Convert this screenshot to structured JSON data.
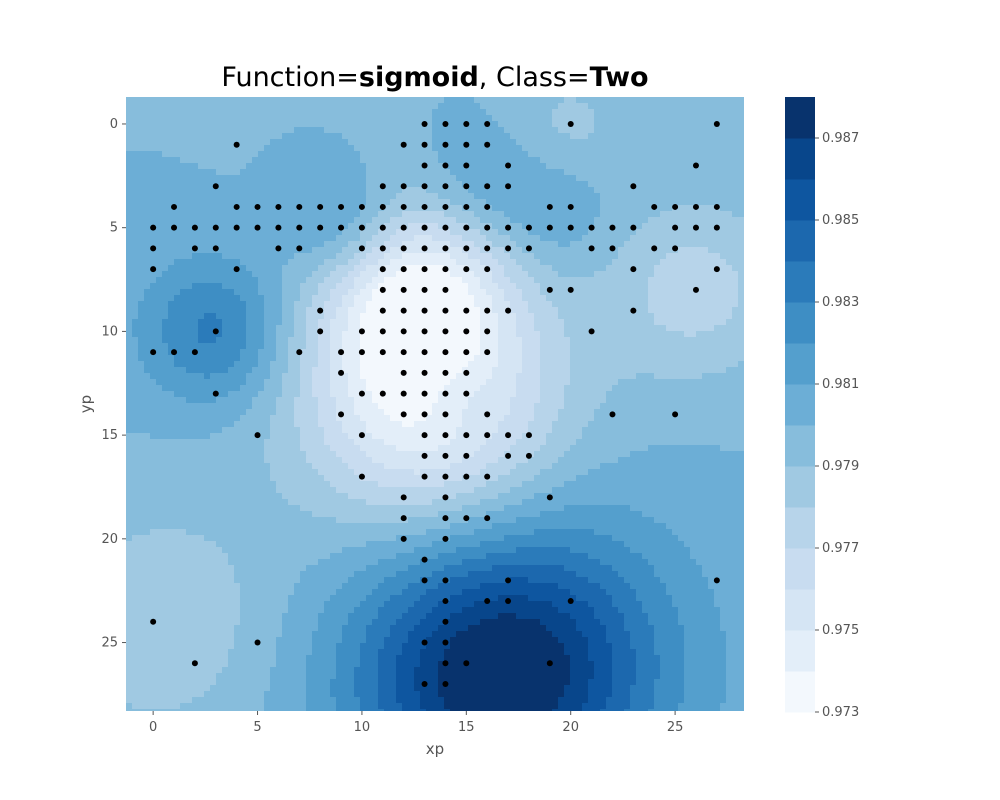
{
  "title": {
    "prefix": "Function=",
    "function": "sigmoid",
    "separator": ", Class=",
    "class": "Two"
  },
  "chart_data": {
    "type": "contourf",
    "xlabel": "xp",
    "ylabel": "yp",
    "xlim": [
      -1.3,
      28.3
    ],
    "ylim": [
      28.3,
      -1.3
    ],
    "y_inverted": true,
    "grid": false,
    "xticks": [
      0,
      5,
      10,
      15,
      20,
      25
    ],
    "yticks": [
      0,
      5,
      10,
      15,
      20,
      25
    ],
    "colormap": "Blues",
    "colorbar": {
      "range": [
        0.973,
        0.988
      ],
      "levels": [
        0.973,
        0.974,
        0.975,
        0.976,
        0.977,
        0.978,
        0.979,
        0.98,
        0.981,
        0.982,
        0.983,
        0.984,
        0.985,
        0.986,
        0.987,
        0.988
      ],
      "tick_values": [
        0.973,
        0.975,
        0.977,
        0.979,
        0.981,
        0.983,
        0.985,
        0.987
      ],
      "tick_labels": [
        "0.973",
        "0.975",
        "0.977",
        "0.979",
        "0.981",
        "0.983",
        "0.985",
        "0.987"
      ],
      "colors": [
        "#f3f8fd",
        "#e3eef9",
        "#d5e5f4",
        "#c8dcf0",
        "#b7d4ea",
        "#a0c9e2",
        "#87bddc",
        "#6caed6",
        "#549fcd",
        "#3e8ec4",
        "#2b7bba",
        "#1c68ae",
        "#0e56a0",
        "#08468b",
        "#08336d"
      ]
    },
    "field_features": [
      {
        "x": 13,
        "y": 12,
        "value": 0.9755,
        "radius": 4.5
      },
      {
        "x": 12.5,
        "y": 8,
        "value": 0.9758,
        "radius": 3
      },
      {
        "x": 13.5,
        "y": 15,
        "value": 0.9775,
        "radius": 4
      },
      {
        "x": 18,
        "y": 26,
        "value": 0.9855,
        "radius": 5
      },
      {
        "x": 15,
        "y": 27,
        "value": 0.9835,
        "radius": 4.5
      },
      {
        "x": 3,
        "y": 10,
        "value": 0.9835,
        "radius": 2.5
      },
      {
        "x": 9,
        "y": 5,
        "value": 0.9825,
        "radius": 2
      },
      {
        "x": 15.5,
        "y": 3,
        "value": 0.9813,
        "radius": 2
      },
      {
        "x": 19,
        "y": 4.5,
        "value": 0.9813,
        "radius": 2
      },
      {
        "x": 14.5,
        "y": 13,
        "value": 0.9815,
        "radius": 1.5
      },
      {
        "x": 0.5,
        "y": 24,
        "value": 0.9782,
        "radius": 4
      },
      {
        "x": 26,
        "y": 8,
        "value": 0.9775,
        "radius": 3
      },
      {
        "x": 20,
        "y": 0,
        "value": 0.9788,
        "radius": 2
      }
    ],
    "points": [
      [
        0,
        5
      ],
      [
        0,
        6
      ],
      [
        0,
        7
      ],
      [
        1,
        4
      ],
      [
        1,
        5
      ],
      [
        2,
        5
      ],
      [
        2,
        6
      ],
      [
        3,
        3
      ],
      [
        3,
        5
      ],
      [
        3,
        6
      ],
      [
        4,
        1
      ],
      [
        4,
        4
      ],
      [
        4,
        5
      ],
      [
        4,
        7
      ],
      [
        5,
        4
      ],
      [
        5,
        5
      ],
      [
        6,
        4
      ],
      [
        6,
        5
      ],
      [
        6,
        6
      ],
      [
        7,
        4
      ],
      [
        7,
        5
      ],
      [
        7,
        6
      ],
      [
        8,
        4
      ],
      [
        8,
        5
      ],
      [
        9,
        4
      ],
      [
        9,
        5
      ],
      [
        10,
        4
      ],
      [
        10,
        5
      ],
      [
        10,
        6
      ],
      [
        11,
        3
      ],
      [
        11,
        4
      ],
      [
        11,
        5
      ],
      [
        11,
        6
      ],
      [
        11,
        7
      ],
      [
        11,
        8
      ],
      [
        11,
        9
      ],
      [
        11,
        10
      ],
      [
        11,
        11
      ],
      [
        12,
        1
      ],
      [
        12,
        3
      ],
      [
        12,
        4
      ],
      [
        12,
        5
      ],
      [
        12,
        6
      ],
      [
        12,
        7
      ],
      [
        12,
        8
      ],
      [
        12,
        9
      ],
      [
        12,
        10
      ],
      [
        12,
        11
      ],
      [
        12,
        12
      ],
      [
        13,
        0
      ],
      [
        13,
        1
      ],
      [
        13,
        2
      ],
      [
        13,
        3
      ],
      [
        13,
        4
      ],
      [
        13,
        5
      ],
      [
        13,
        6
      ],
      [
        13,
        7
      ],
      [
        13,
        8
      ],
      [
        13,
        9
      ],
      [
        13,
        10
      ],
      [
        13,
        11
      ],
      [
        13,
        12
      ],
      [
        13,
        13
      ],
      [
        13,
        14
      ],
      [
        13,
        15
      ],
      [
        13,
        16
      ],
      [
        13,
        17
      ],
      [
        14,
        0
      ],
      [
        14,
        1
      ],
      [
        14,
        2
      ],
      [
        14,
        3
      ],
      [
        14,
        4
      ],
      [
        14,
        5
      ],
      [
        14,
        6
      ],
      [
        14,
        7
      ],
      [
        14,
        8
      ],
      [
        14,
        9
      ],
      [
        14,
        10
      ],
      [
        14,
        11
      ],
      [
        14,
        12
      ],
      [
        14,
        13
      ],
      [
        14,
        14
      ],
      [
        14,
        15
      ],
      [
        14,
        16
      ],
      [
        14,
        17
      ],
      [
        14,
        18
      ],
      [
        14,
        19
      ],
      [
        14,
        20
      ],
      [
        15,
        0
      ],
      [
        15,
        1
      ],
      [
        15,
        2
      ],
      [
        15,
        3
      ],
      [
        15,
        4
      ],
      [
        15,
        5
      ],
      [
        15,
        6
      ],
      [
        15,
        7
      ],
      [
        15,
        9
      ],
      [
        15,
        10
      ],
      [
        15,
        11
      ],
      [
        15,
        12
      ],
      [
        15,
        13
      ],
      [
        15,
        15
      ],
      [
        15,
        16
      ],
      [
        15,
        17
      ],
      [
        15,
        19
      ],
      [
        16,
        0
      ],
      [
        16,
        1
      ],
      [
        16,
        3
      ],
      [
        16,
        4
      ],
      [
        16,
        5
      ],
      [
        16,
        6
      ],
      [
        16,
        7
      ],
      [
        16,
        9
      ],
      [
        16,
        10
      ],
      [
        16,
        11
      ],
      [
        16,
        14
      ],
      [
        16,
        15
      ],
      [
        16,
        17
      ],
      [
        16,
        19
      ],
      [
        17,
        2
      ],
      [
        17,
        3
      ],
      [
        17,
        5
      ],
      [
        17,
        6
      ],
      [
        17,
        9
      ],
      [
        17,
        15
      ],
      [
        17,
        16
      ],
      [
        18,
        5
      ],
      [
        18,
        6
      ],
      [
        18,
        15
      ],
      [
        18,
        16
      ],
      [
        19,
        4
      ],
      [
        19,
        5
      ],
      [
        19,
        8
      ],
      [
        19,
        18
      ],
      [
        20,
        0
      ],
      [
        20,
        4
      ],
      [
        20,
        5
      ],
      [
        20,
        8
      ],
      [
        20,
        23
      ],
      [
        21,
        5
      ],
      [
        21,
        6
      ],
      [
        21,
        10
      ],
      [
        22,
        5
      ],
      [
        22,
        6
      ],
      [
        22,
        14
      ],
      [
        23,
        3
      ],
      [
        23,
        5
      ],
      [
        23,
        7
      ],
      [
        23,
        9
      ],
      [
        24,
        4
      ],
      [
        24,
        6
      ],
      [
        25,
        4
      ],
      [
        25,
        5
      ],
      [
        25,
        6
      ],
      [
        25,
        14
      ],
      [
        26,
        2
      ],
      [
        26,
        4
      ],
      [
        26,
        5
      ],
      [
        26,
        8
      ],
      [
        27,
        0
      ],
      [
        27,
        4
      ],
      [
        27,
        5
      ],
      [
        27,
        7
      ],
      [
        27,
        22
      ],
      [
        0,
        24
      ],
      [
        2,
        26
      ],
      [
        5,
        25
      ],
      [
        0,
        11
      ],
      [
        1,
        11
      ],
      [
        2,
        11
      ],
      [
        3,
        10
      ],
      [
        3,
        13
      ],
      [
        5,
        15
      ],
      [
        7,
        11
      ],
      [
        8,
        9
      ],
      [
        8,
        10
      ],
      [
        9,
        11
      ],
      [
        9,
        12
      ],
      [
        9,
        14
      ],
      [
        10,
        10
      ],
      [
        10,
        11
      ],
      [
        10,
        13
      ],
      [
        10,
        15
      ],
      [
        10,
        17
      ],
      [
        11,
        13
      ],
      [
        12,
        13
      ],
      [
        12,
        14
      ],
      [
        12,
        18
      ],
      [
        12,
        19
      ],
      [
        12,
        20
      ],
      [
        13,
        21
      ],
      [
        13,
        22
      ],
      [
        13,
        25
      ],
      [
        13,
        27
      ],
      [
        14,
        22
      ],
      [
        14,
        23
      ],
      [
        14,
        24
      ],
      [
        14,
        25
      ],
      [
        14,
        26
      ],
      [
        14,
        27
      ],
      [
        15,
        26
      ],
      [
        16,
        23
      ],
      [
        17,
        22
      ],
      [
        17,
        23
      ],
      [
        19,
        26
      ]
    ]
  }
}
